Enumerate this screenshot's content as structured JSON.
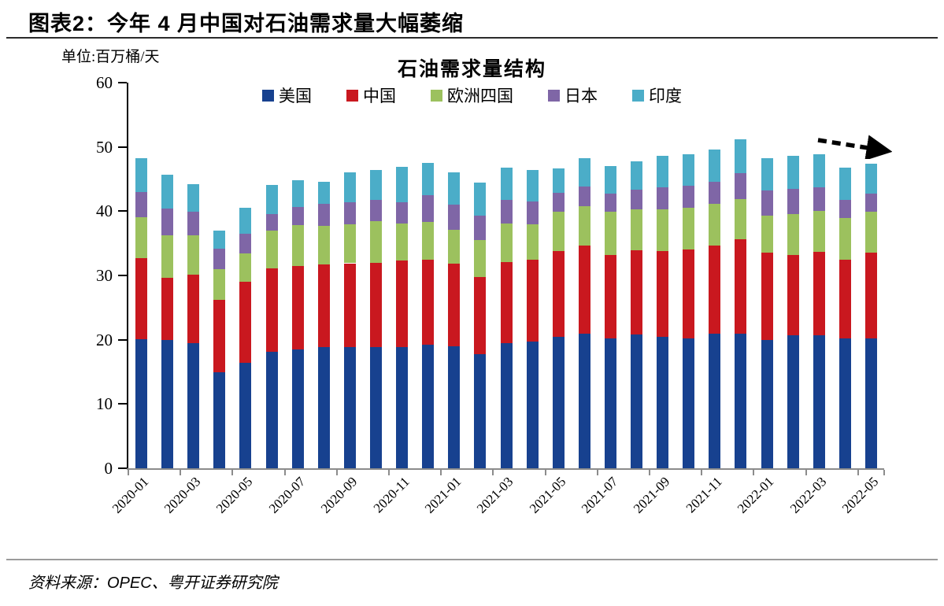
{
  "page": {
    "title": "图表2：今年 4 月中国对石油需求量大幅萎缩",
    "source": "资料来源：OPEC、粤开证券研究院"
  },
  "chart_data": {
    "type": "bar",
    "stacked": true,
    "title": "石油需求量结构",
    "unit_label": "单位:百万桶/天",
    "ylabel": "",
    "xlabel": "",
    "ylim": [
      0,
      60
    ],
    "y_ticks": [
      0,
      10,
      20,
      30,
      40,
      50,
      60
    ],
    "grid": false,
    "legend_position": "top",
    "x_label_interval": 2,
    "categories": [
      "2020-01",
      "2020-02",
      "2020-03",
      "2020-04",
      "2020-05",
      "2020-06",
      "2020-07",
      "2020-08",
      "2020-09",
      "2020-10",
      "2020-11",
      "2020-12",
      "2021-01",
      "2021-02",
      "2021-03",
      "2021-04",
      "2021-05",
      "2021-06",
      "2021-07",
      "2021-08",
      "2021-09",
      "2021-10",
      "2021-11",
      "2021-12",
      "2022-01",
      "2022-02",
      "2022-03",
      "2022-04",
      "2022-05"
    ],
    "series": [
      {
        "name": "美国",
        "color": "#17418F",
        "values": [
          20.1,
          20.0,
          19.5,
          15.0,
          16.4,
          18.1,
          18.5,
          18.8,
          18.8,
          18.9,
          18.9,
          19.2,
          19.0,
          17.7,
          19.5,
          19.7,
          20.4,
          21.0,
          20.2,
          20.8,
          20.4,
          20.2,
          20.9,
          21.0,
          20.0,
          20.7,
          20.7,
          20.2,
          20.2
        ]
      },
      {
        "name": "中国",
        "color": "#C9181F",
        "values": [
          12.6,
          9.6,
          10.6,
          11.2,
          12.6,
          13.0,
          13.0,
          12.9,
          13.1,
          13.1,
          13.4,
          13.3,
          12.8,
          12.0,
          12.6,
          12.7,
          13.4,
          13.6,
          13.0,
          13.1,
          13.4,
          13.9,
          13.7,
          14.6,
          13.5,
          12.5,
          13.0,
          12.2,
          13.3
        ]
      },
      {
        "name": "欧洲四国",
        "color": "#9CC15E",
        "values": [
          6.4,
          6.7,
          6.1,
          4.8,
          4.4,
          5.9,
          6.3,
          6.0,
          6.0,
          6.5,
          5.8,
          5.8,
          5.3,
          5.8,
          6.0,
          5.6,
          6.1,
          6.2,
          6.7,
          6.4,
          6.5,
          6.4,
          6.6,
          6.3,
          5.8,
          6.3,
          6.4,
          6.5,
          6.4
        ]
      },
      {
        "name": "日本",
        "color": "#7F66A6",
        "values": [
          3.9,
          4.1,
          3.7,
          3.2,
          3.1,
          2.6,
          2.8,
          3.4,
          3.5,
          3.2,
          3.3,
          4.2,
          3.9,
          3.8,
          3.6,
          3.5,
          2.9,
          3.0,
          2.8,
          3.1,
          3.4,
          3.4,
          3.4,
          4.0,
          3.9,
          4.0,
          3.6,
          2.9,
          2.8
        ]
      },
      {
        "name": "印度",
        "color": "#4BADC8",
        "values": [
          5.2,
          5.3,
          4.3,
          2.8,
          4.0,
          4.5,
          4.2,
          3.5,
          4.7,
          4.7,
          5.5,
          5.0,
          5.1,
          5.2,
          5.1,
          4.9,
          3.8,
          4.5,
          4.3,
          4.3,
          4.9,
          4.9,
          5.0,
          5.3,
          5.0,
          5.1,
          5.2,
          5.0,
          4.7
        ]
      }
    ],
    "annotations": [
      {
        "type": "dashed-arrow",
        "position": "top-right",
        "color": "#000000"
      }
    ],
    "axis_colors": {
      "y_axis": "#000000",
      "x_axis": "#8c8c8c"
    }
  }
}
